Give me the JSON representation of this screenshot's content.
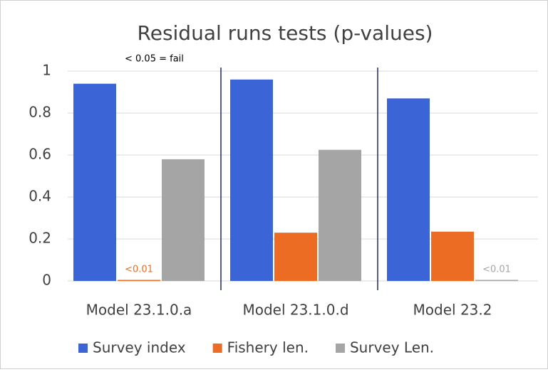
{
  "chart_data": {
    "type": "bar",
    "title": "Residual runs tests (p-values)",
    "annotation": "< 0.05 = fail",
    "categories": [
      "Model 23.1.0.a",
      "Model 23.1.0.d",
      "Model 23.2"
    ],
    "series": [
      {
        "name": "Survey index",
        "color": "#3b64d6",
        "values": [
          0.94,
          0.96,
          0.87
        ]
      },
      {
        "name": "Fishery len.",
        "color": "#ec6c24",
        "values": [
          0.005,
          0.23,
          0.235
        ],
        "value_labels": [
          "<0.01",
          null,
          null
        ]
      },
      {
        "name": "Survey Len.",
        "color": "#a5a5a5",
        "values": [
          0.58,
          0.625,
          0.005
        ],
        "value_labels": [
          null,
          null,
          "<0.01"
        ]
      }
    ],
    "ylim": [
      0,
      1
    ],
    "yticks": [
      0,
      0.2,
      0.4,
      0.6,
      0.8,
      1
    ],
    "grid": true,
    "legend": "bottom"
  }
}
